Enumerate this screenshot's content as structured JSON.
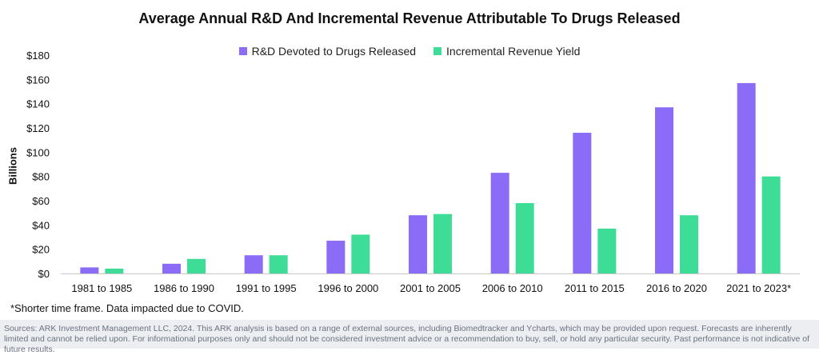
{
  "colors": {
    "rd": "#8b6cf6",
    "revenue": "#3ddc97",
    "axis": "#c8c8c8",
    "text": "#111111"
  },
  "chart_data": {
    "type": "bar",
    "title": "Average Annual R&D And Incremental Revenue Attributable To Drugs Released",
    "ylabel": "Billions",
    "xlabel": "",
    "ylim": [
      0,
      180
    ],
    "yticks": [
      "$0",
      "$20",
      "$40",
      "$60",
      "$80",
      "$100",
      "$120",
      "$140",
      "$160",
      "$180"
    ],
    "ytick_values": [
      0,
      20,
      40,
      60,
      80,
      100,
      120,
      140,
      160,
      180
    ],
    "grid": false,
    "legend_position": "top-center",
    "categories": [
      "1981 to 1985",
      "1986 to 1990",
      "1991 to 1995",
      "1996 to 2000",
      "2001 to 2005",
      "2006 to 2010",
      "2011 to 2015",
      "2016 to 2020",
      "2021 to 2023*"
    ],
    "series": [
      {
        "name": "R&D Devoted to Drugs Released",
        "color": "#8b6cf6",
        "values": [
          5,
          8,
          15,
          27,
          48,
          83,
          116,
          137,
          157
        ]
      },
      {
        "name": "Incremental Revenue Yield",
        "color": "#3ddc97",
        "values": [
          4,
          12,
          15,
          32,
          49,
          58,
          37,
          48,
          80
        ]
      }
    ]
  },
  "footnote": "*Shorter time frame. Data impacted due to COVID.",
  "sources": "Sources: ARK Investment Management LLC, 2024. This ARK analysis is based on a range of external sources, including Biomedtracker and Ycharts, which may be provided upon request. Forecasts are inherently limited and cannot be relied upon. For informational purposes only and should not be considered investment advice or a recommendation to buy, sell, or hold any particular security. Past performance is not indicative of future results."
}
